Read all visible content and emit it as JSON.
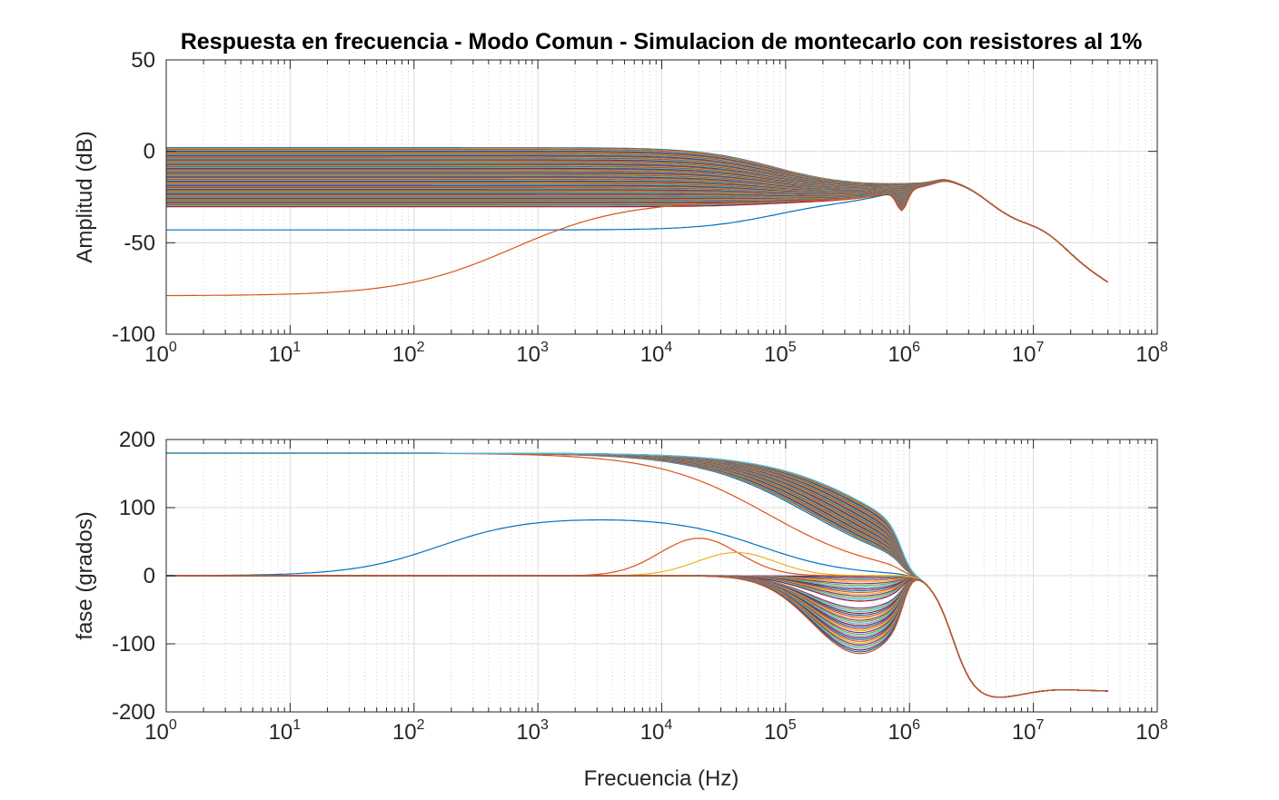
{
  "chart_data": [
    {
      "type": "line",
      "title": "Respuesta en frecuencia - Modo Comun - Simulacion de montecarlo con resistores al 1%",
      "xlabel": "",
      "ylabel": "Amplitud (dB)",
      "xscale": "log",
      "xlim": [
        1,
        100000000
      ],
      "ylim": [
        -100,
        50
      ],
      "grid": true,
      "x_ticks": [
        {
          "base": "10",
          "exp": "0"
        },
        {
          "base": "10",
          "exp": "1"
        },
        {
          "base": "10",
          "exp": "2"
        },
        {
          "base": "10",
          "exp": "3"
        },
        {
          "base": "10",
          "exp": "4"
        },
        {
          "base": "10",
          "exp": "5"
        },
        {
          "base": "10",
          "exp": "6"
        },
        {
          "base": "10",
          "exp": "7"
        },
        {
          "base": "10",
          "exp": "8"
        }
      ],
      "y_ticks": [
        "-100",
        "-50",
        "0",
        "50"
      ],
      "y_tick_values": [
        -100,
        -50,
        0,
        50
      ],
      "x_range_data": [
        1,
        40000000
      ],
      "series_count": 100,
      "dc_gain_db_range": [
        2,
        -35
      ],
      "outliers_dc_gain_db": [
        -43,
        -79
      ],
      "notch_hz": 870000,
      "notch_db": -39,
      "peak_hz": 1900000,
      "peak_db": -17,
      "end_db": -74
    },
    {
      "type": "line",
      "title": "",
      "xlabel": "Frecuencia (Hz)",
      "ylabel": "fase (grados)",
      "xscale": "log",
      "xlim": [
        1,
        100000000
      ],
      "ylim": [
        -200,
        200
      ],
      "grid": true,
      "x_ticks": [
        {
          "base": "10",
          "exp": "0"
        },
        {
          "base": "10",
          "exp": "1"
        },
        {
          "base": "10",
          "exp": "2"
        },
        {
          "base": "10",
          "exp": "3"
        },
        {
          "base": "10",
          "exp": "4"
        },
        {
          "base": "10",
          "exp": "5"
        },
        {
          "base": "10",
          "exp": "6"
        },
        {
          "base": "10",
          "exp": "7"
        },
        {
          "base": "10",
          "exp": "8"
        }
      ],
      "y_ticks": [
        "-200",
        "-100",
        "0",
        "100",
        "200"
      ],
      "y_tick_values": [
        -200,
        -100,
        0,
        100,
        200
      ],
      "x_range_data": [
        1,
        40000000
      ],
      "start_phase_deg": [
        180,
        0
      ],
      "min_phase_deg": -187,
      "min_phase_hz": 5000000,
      "end_phase_deg": -170
    }
  ],
  "colors": {
    "series": [
      "#0072BD",
      "#D95319",
      "#EDB120",
      "#7E2F8E",
      "#77AC30",
      "#4DBEEE",
      "#A2142F"
    ],
    "grid": "#dfdfdf",
    "axis": "#262626"
  }
}
